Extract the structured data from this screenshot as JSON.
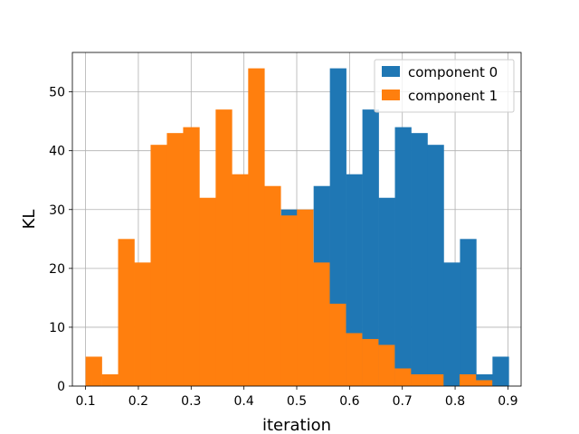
{
  "chart_data": {
    "type": "histogram",
    "xlabel": "iteration",
    "ylabel": "KL",
    "xlim": [
      0.075,
      0.925
    ],
    "ylim": [
      0,
      56.7
    ],
    "xticks": [
      0.1,
      0.2,
      0.3,
      0.4,
      0.5,
      0.6,
      0.7,
      0.8,
      0.9
    ],
    "xtick_labels": [
      "0.1",
      "0.2",
      "0.3",
      "0.4",
      "0.5",
      "0.6",
      "0.7",
      "0.8",
      "0.9"
    ],
    "yticks": [
      0,
      10,
      20,
      30,
      40,
      50
    ],
    "ytick_labels": [
      "0",
      "10",
      "20",
      "30",
      "40",
      "50"
    ],
    "grid": true,
    "legend_position": "upper right",
    "series": [
      {
        "name": "component 0",
        "color": "#1f77b4",
        "bin_edges": [
          0.532,
          0.5628,
          0.5936,
          0.6244,
          0.6552,
          0.686,
          0.7168,
          0.7476,
          0.7784,
          0.8092,
          0.84,
          0.8708,
          0.9016
        ],
        "counts": [
          34,
          54,
          36,
          47,
          32,
          44,
          43,
          41,
          21,
          25,
          2,
          5
        ],
        "extra_bars": [
          {
            "x0": 0.4704,
            "x1": 0.5012,
            "count": 30
          }
        ]
      },
      {
        "name": "component 1",
        "color": "#ff7f0e",
        "bin_edges": [
          0.1,
          0.1308,
          0.1616,
          0.1924,
          0.2232,
          0.254,
          0.2848,
          0.3156,
          0.3464,
          0.3772,
          0.408,
          0.4388,
          0.4696,
          0.5004,
          0.5312,
          0.562,
          0.5928,
          0.6236,
          0.6544,
          0.6852,
          0.716,
          0.7468,
          0.7776,
          0.8084,
          0.8392,
          0.87
        ],
        "counts": [
          5,
          2,
          25,
          21,
          41,
          43,
          44,
          32,
          47,
          36,
          54,
          34,
          29,
          30,
          21,
          14,
          9,
          8,
          7,
          3,
          2,
          2,
          0,
          2,
          1
        ]
      }
    ]
  }
}
